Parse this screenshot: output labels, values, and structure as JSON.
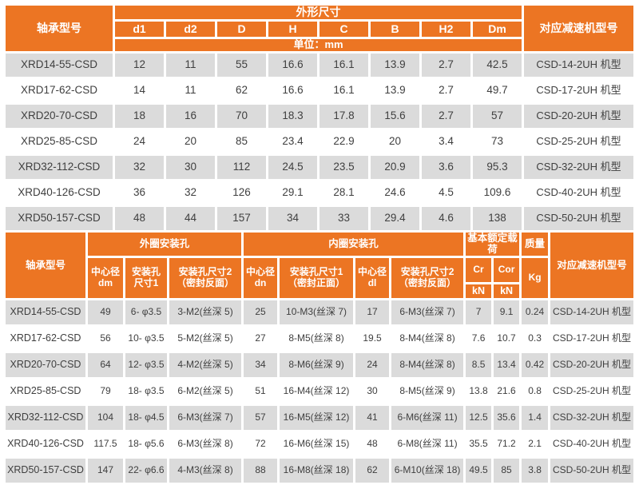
{
  "accent_color": "#EC7523",
  "alt_row_color": "#DBDBDB",
  "table1": {
    "model_header": "轴承型号",
    "dim_group_header": "外形尺寸",
    "unit_label": "单位：mm",
    "reducer_header": "对应减速机型号",
    "dim_cols": [
      "d1",
      "d2",
      "D",
      "H",
      "C",
      "B",
      "H2",
      "Dm"
    ],
    "rows": [
      {
        "model": "XRD14-55-CSD",
        "dims": [
          "12",
          "11",
          "55",
          "16.6",
          "16.1",
          "13.9",
          "2.7",
          "42.5"
        ],
        "reducer": "CSD-14-2UH 机型"
      },
      {
        "model": "XRD17-62-CSD",
        "dims": [
          "14",
          "11",
          "62",
          "16.6",
          "16.1",
          "13.9",
          "2.7",
          "49.7"
        ],
        "reducer": "CSD-17-2UH 机型"
      },
      {
        "model": "XRD20-70-CSD",
        "dims": [
          "18",
          "16",
          "70",
          "18.3",
          "17.8",
          "15.6",
          "2.7",
          "57"
        ],
        "reducer": "CSD-20-2UH 机型"
      },
      {
        "model": "XRD25-85-CSD",
        "dims": [
          "24",
          "20",
          "85",
          "23.4",
          "22.9",
          "20",
          "3.4",
          "73"
        ],
        "reducer": "CSD-25-2UH 机型"
      },
      {
        "model": "XRD32-112-CSD",
        "dims": [
          "32",
          "30",
          "112",
          "24.5",
          "23.5",
          "20.9",
          "3.6",
          "95.3"
        ],
        "reducer": "CSD-32-2UH 机型"
      },
      {
        "model": "XRD40-126-CSD",
        "dims": [
          "36",
          "32",
          "126",
          "29.1",
          "28.1",
          "24.6",
          "4.5",
          "109.6"
        ],
        "reducer": "CSD-40-2UH 机型"
      },
      {
        "model": "XRD50-157-CSD",
        "dims": [
          "48",
          "44",
          "157",
          "34",
          "33",
          "29.4",
          "4.6",
          "138"
        ],
        "reducer": "CSD-50-2UH 机型"
      }
    ]
  },
  "table2": {
    "model_header": "轴承型号",
    "outer_group_header": "外圈安装孔",
    "inner_group_header": "内圈安装孔",
    "load_group_header": "基本额定载荷",
    "mass_group_header": "质量",
    "reducer_header": "对应减速机型号",
    "sub_cols": [
      {
        "label": "中心径 dm",
        "rowspan": 2
      },
      {
        "label": "安装孔 尺寸1",
        "rowspan": 2
      },
      {
        "label": "安装孔尺寸2 （密封反面）",
        "rowspan": 2
      },
      {
        "label": "中心径 dn",
        "rowspan": 2
      },
      {
        "label": "安装孔尺寸1 （密封正面）",
        "rowspan": 2
      },
      {
        "label": "中心径 dl",
        "rowspan": 2
      },
      {
        "label": "安装孔尺寸2 （密封反面）",
        "rowspan": 2
      },
      {
        "label": "Cr"
      },
      {
        "label": "Cor"
      },
      {
        "label": "Kg",
        "rowspan": 2
      }
    ],
    "unit_cells": [
      "kN",
      "kN"
    ],
    "rows": [
      {
        "model": "XRD14-55-CSD",
        "cells": [
          "49",
          "6- φ3.5",
          "3-M2(丝深 5)",
          "25",
          "10-M3(丝深 7)",
          "17",
          "6-M3(丝深 7)",
          "7",
          "9.1",
          "0.24"
        ],
        "reducer": "CSD-14-2UH 机型"
      },
      {
        "model": "XRD17-62-CSD",
        "cells": [
          "56",
          "10- φ3.5",
          "5-M2(丝深 5)",
          "27",
          "8-M5(丝深 8)",
          "19.5",
          "8-M4(丝深 8)",
          "7.6",
          "10.7",
          "0.3"
        ],
        "reducer": "CSD-17-2UH 机型"
      },
      {
        "model": "XRD20-70-CSD",
        "cells": [
          "64",
          "12- φ3.5",
          "4-M2(丝深 5)",
          "34",
          "8-M6(丝深 9)",
          "24",
          "8-M4(丝深 8)",
          "8.5",
          "13.4",
          "0.42"
        ],
        "reducer": "CSD-20-2UH 机型"
      },
      {
        "model": "XRD25-85-CSD",
        "cells": [
          "79",
          "18- φ3.5",
          "6-M2(丝深 5)",
          "51",
          "16-M4(丝深 12)",
          "30",
          "8-M5(丝深 9)",
          "13.8",
          "21.6",
          "0.8"
        ],
        "reducer": "CSD-25-2UH 机型"
      },
      {
        "model": "XRD32-112-CSD",
        "cells": [
          "104",
          "18- φ4.5",
          "6-M3(丝深 7)",
          "57",
          "16-M5(丝深 12)",
          "41",
          "6-M6(丝深 11)",
          "12.5",
          "35.6",
          "1.4"
        ],
        "reducer": "CSD-32-2UH 机型"
      },
      {
        "model": "XRD40-126-CSD",
        "cells": [
          "117.5",
          "18- φ5.6",
          "6-M3(丝深 8)",
          "72",
          "16-M6(丝深 15)",
          "48",
          "6-M8(丝深 11)",
          "35.5",
          "71.2",
          "2.1"
        ],
        "reducer": "CSD-40-2UH 机型"
      },
      {
        "model": "XRD50-157-CSD",
        "cells": [
          "147",
          "22- φ6.6",
          "4-M3(丝深 8)",
          "88",
          "16-M8(丝深 18)",
          "62",
          "6-M10(丝深 18)",
          "49.5",
          "85",
          "3.8"
        ],
        "reducer": "CSD-50-2UH 机型"
      }
    ]
  }
}
